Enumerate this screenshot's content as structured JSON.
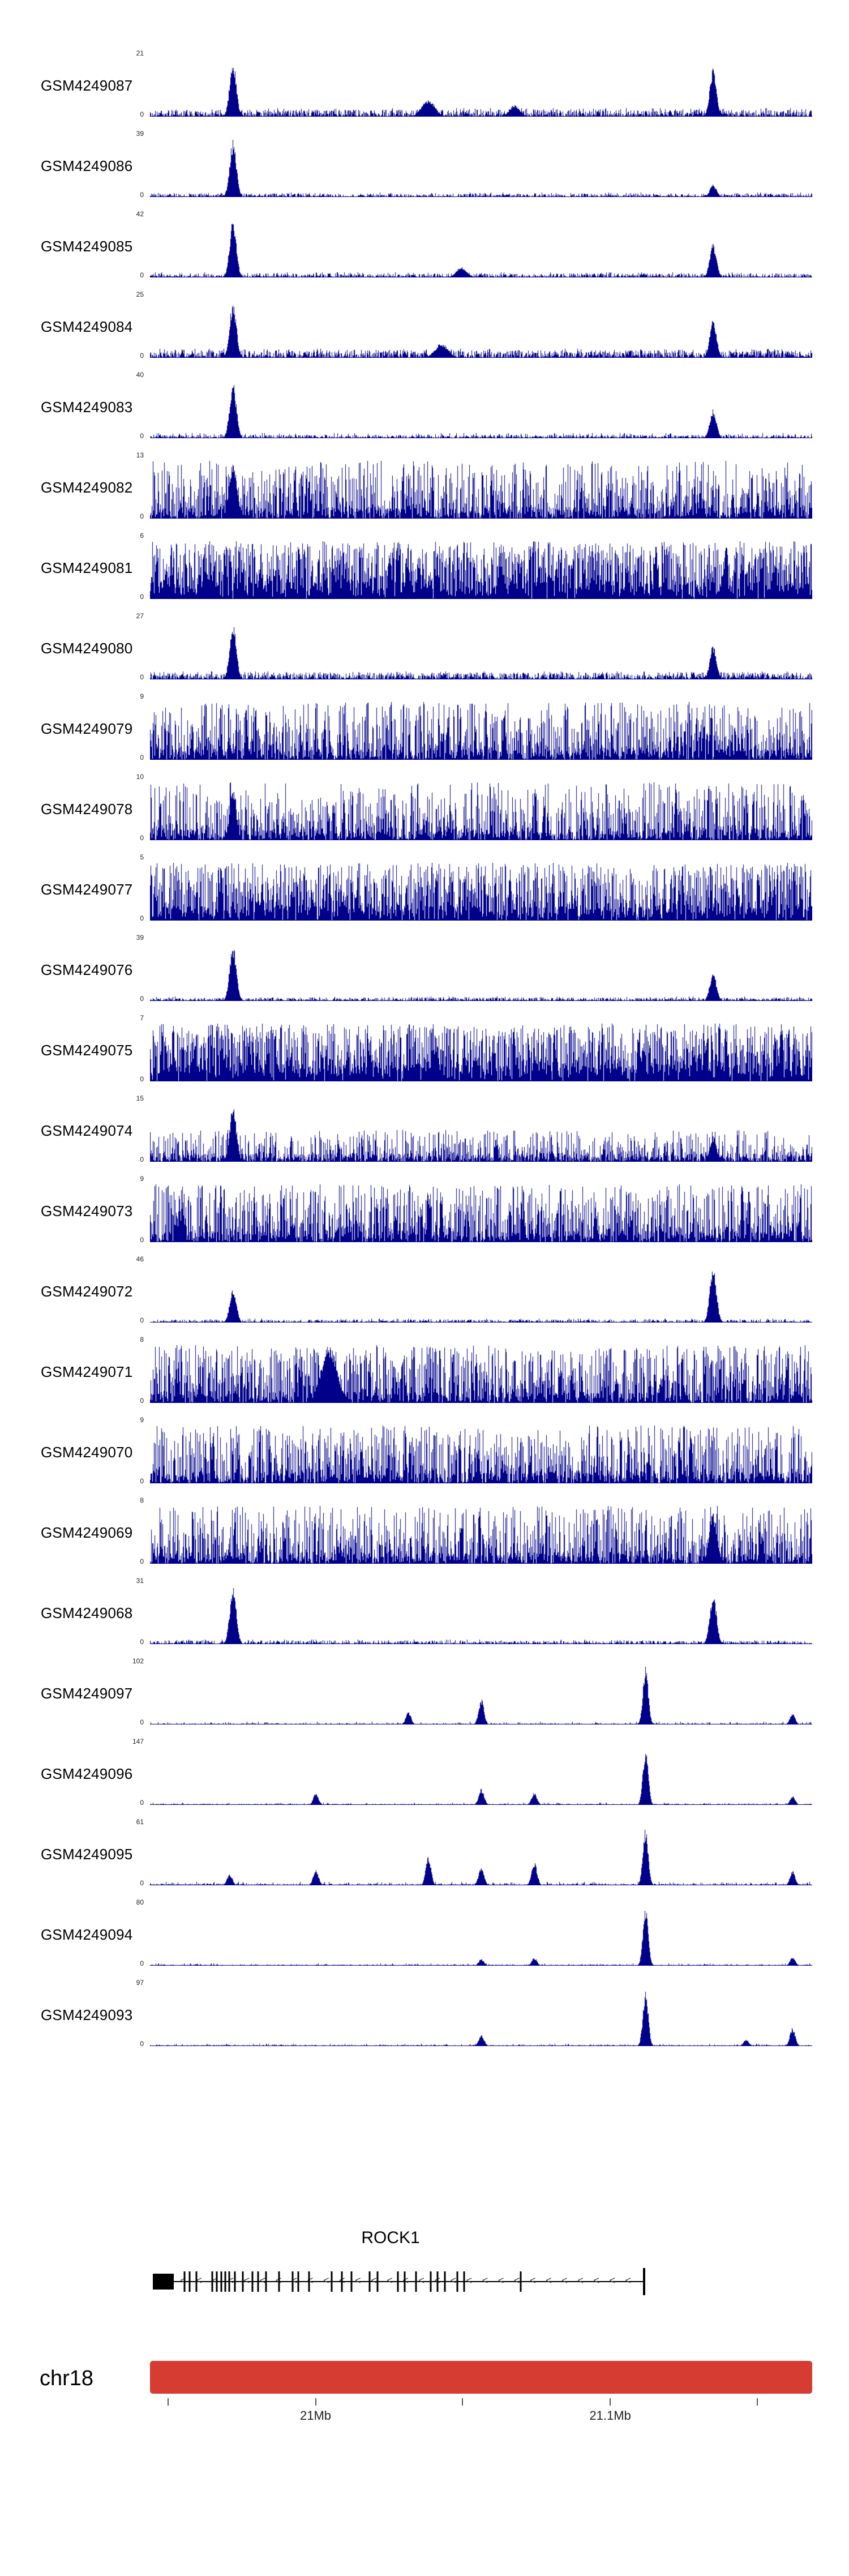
{
  "figure": {
    "signal_color": "#00008B",
    "ideogram_color": "#D63C32",
    "zero_label": "0"
  },
  "gene_track": {
    "gene_name": "ROCK1",
    "strand_arrow": "<",
    "utr_box": {
      "x": 0.004,
      "w": 0.032
    },
    "line_end": 0.746,
    "exons": [
      0.052,
      0.06,
      0.07,
      0.094,
      0.101,
      0.108,
      0.114,
      0.12,
      0.128,
      0.14,
      0.155,
      0.163,
      0.175,
      0.195,
      0.215,
      0.224,
      0.24,
      0.274,
      0.29,
      0.304,
      0.332,
      0.344,
      0.374,
      0.385,
      0.402,
      0.424,
      0.434,
      0.445,
      0.464,
      0.474,
      0.56,
      0.746
    ]
  },
  "ideogram": {
    "chromosome": "chr18"
  },
  "scale": {
    "ticks": [
      {
        "x": 0.027,
        "label": ""
      },
      {
        "x": 0.25,
        "label": "21Mb"
      },
      {
        "x": 0.472,
        "label": ""
      },
      {
        "x": 0.695,
        "label": "21.1Mb"
      },
      {
        "x": 0.917,
        "label": ""
      }
    ]
  },
  "chart_data": {
    "type": "area",
    "description": "Genome browser read-coverage tracks across the ROCK1 locus on chr18; each track is a GSM sample with its own y-axis maximum, signal drawn as dark-blue vertical coverage bars from 0 to ymax.",
    "x_axis": {
      "chromosome": "chr18",
      "tick_labels": [
        "21Mb",
        "21.1Mb"
      ]
    },
    "gene": "ROCK1",
    "tracks": [
      {
        "label": "GSM4249087",
        "ymax": 21,
        "noise": 0.12,
        "density": 0.55,
        "spike": 0.15,
        "pow": 2.2,
        "peaks": [
          {
            "x": 0.125,
            "h": 1,
            "w": 0.005
          },
          {
            "x": 0.42,
            "h": 0.3,
            "w": 0.01
          },
          {
            "x": 0.55,
            "h": 0.2,
            "w": 0.008
          },
          {
            "x": 0.85,
            "h": 0.85,
            "w": 0.005
          }
        ]
      },
      {
        "label": "GSM4249086",
        "ymax": 39,
        "noise": 0.06,
        "density": 0.45,
        "spike": 0.08,
        "pow": 2.5,
        "peaks": [
          {
            "x": 0.125,
            "h": 1,
            "w": 0.005
          },
          {
            "x": 0.85,
            "h": 0.22,
            "w": 0.005
          }
        ]
      },
      {
        "label": "GSM4249085",
        "ymax": 42,
        "noise": 0.07,
        "density": 0.5,
        "spike": 0.09,
        "pow": 2.5,
        "peaks": [
          {
            "x": 0.125,
            "h": 1,
            "w": 0.005
          },
          {
            "x": 0.47,
            "h": 0.18,
            "w": 0.008
          },
          {
            "x": 0.85,
            "h": 0.6,
            "w": 0.005
          }
        ]
      },
      {
        "label": "GSM4249084",
        "ymax": 25,
        "noise": 0.13,
        "density": 0.6,
        "spike": 0.16,
        "pow": 2.2,
        "peaks": [
          {
            "x": 0.125,
            "h": 1,
            "w": 0.005
          },
          {
            "x": 0.44,
            "h": 0.25,
            "w": 0.01
          },
          {
            "x": 0.85,
            "h": 0.7,
            "w": 0.005
          }
        ]
      },
      {
        "label": "GSM4249083",
        "ymax": 40,
        "noise": 0.06,
        "density": 0.45,
        "spike": 0.09,
        "pow": 2.5,
        "peaks": [
          {
            "x": 0.125,
            "h": 1,
            "w": 0.005
          },
          {
            "x": 0.85,
            "h": 0.5,
            "w": 0.005
          }
        ]
      },
      {
        "label": "GSM4249082",
        "ymax": 13,
        "noise": 0.2,
        "density": 0.85,
        "spike": 1,
        "pow": 1.6,
        "peaks": [
          {
            "x": 0.125,
            "h": 0.95,
            "w": 0.006
          }
        ]
      },
      {
        "label": "GSM4249081",
        "ymax": 6,
        "noise": 0.3,
        "density": 0.97,
        "spike": 1,
        "pow": 0.9,
        "peaks": []
      },
      {
        "label": "GSM4249080",
        "ymax": 27,
        "noise": 0.12,
        "density": 0.55,
        "spike": 0.14,
        "pow": 2.2,
        "peaks": [
          {
            "x": 0.125,
            "h": 1,
            "w": 0.005
          },
          {
            "x": 0.85,
            "h": 0.6,
            "w": 0.005
          }
        ]
      },
      {
        "label": "GSM4249079",
        "ymax": 9,
        "noise": 0.2,
        "density": 0.85,
        "spike": 1,
        "pow": 1.5,
        "peaks": []
      },
      {
        "label": "GSM4249078",
        "ymax": 10,
        "noise": 0.2,
        "density": 0.8,
        "spike": 1,
        "pow": 1.6,
        "peaks": [
          {
            "x": 0.125,
            "h": 0.9,
            "w": 0.005
          }
        ]
      },
      {
        "label": "GSM4249077",
        "ymax": 5,
        "noise": 0.25,
        "density": 0.9,
        "spike": 1,
        "pow": 1.1,
        "peaks": []
      },
      {
        "label": "GSM4249076",
        "ymax": 39,
        "noise": 0.06,
        "density": 0.45,
        "spike": 0.08,
        "pow": 2.5,
        "peaks": [
          {
            "x": 0.125,
            "h": 1,
            "w": 0.005
          },
          {
            "x": 0.85,
            "h": 0.5,
            "w": 0.005
          }
        ]
      },
      {
        "label": "GSM4249075",
        "ymax": 7,
        "noise": 0.3,
        "density": 0.96,
        "spike": 1,
        "pow": 0.95,
        "peaks": []
      },
      {
        "label": "GSM4249074",
        "ymax": 15,
        "noise": 0.15,
        "density": 0.75,
        "spike": 0.55,
        "pow": 1.8,
        "peaks": [
          {
            "x": 0.125,
            "h": 1,
            "w": 0.005
          },
          {
            "x": 0.85,
            "h": 0.45,
            "w": 0.005
          }
        ]
      },
      {
        "label": "GSM4249073",
        "ymax": 9,
        "noise": 0.2,
        "density": 0.85,
        "spike": 1,
        "pow": 1.5,
        "peaks": []
      },
      {
        "label": "GSM4249072",
        "ymax": 46,
        "noise": 0.05,
        "density": 0.4,
        "spike": 0.07,
        "pow": 2.5,
        "peaks": [
          {
            "x": 0.125,
            "h": 0.6,
            "w": 0.005
          },
          {
            "x": 0.85,
            "h": 1,
            "w": 0.005
          }
        ]
      },
      {
        "label": "GSM4249071",
        "ymax": 8,
        "noise": 0.2,
        "density": 0.85,
        "spike": 1,
        "pow": 1.4,
        "peaks": [
          {
            "x": 0.27,
            "h": 1,
            "w": 0.012
          }
        ]
      },
      {
        "label": "GSM4249070",
        "ymax": 9,
        "noise": 0.2,
        "density": 0.85,
        "spike": 1,
        "pow": 1.5,
        "peaks": []
      },
      {
        "label": "GSM4249069",
        "ymax": 8,
        "noise": 0.2,
        "density": 0.82,
        "spike": 1,
        "pow": 1.5,
        "peaks": [
          {
            "x": 0.85,
            "h": 0.9,
            "w": 0.006
          }
        ]
      },
      {
        "label": "GSM4249068",
        "ymax": 31,
        "noise": 0.06,
        "density": 0.45,
        "spike": 0.08,
        "pow": 2.5,
        "peaks": [
          {
            "x": 0.125,
            "h": 1,
            "w": 0.005
          },
          {
            "x": 0.85,
            "h": 0.9,
            "w": 0.005
          }
        ]
      },
      {
        "label": "GSM4249097",
        "ymax": 102,
        "noise": 0.02,
        "density": 0.35,
        "spike": 0.05,
        "pow": 2.5,
        "peaks": [
          {
            "x": 0.39,
            "h": 0.22,
            "w": 0.004
          },
          {
            "x": 0.5,
            "h": 0.45,
            "w": 0.004
          },
          {
            "x": 0.748,
            "h": 1,
            "w": 0.004
          },
          {
            "x": 0.97,
            "h": 0.2,
            "w": 0.004
          }
        ]
      },
      {
        "label": "GSM4249096",
        "ymax": 147,
        "noise": 0.02,
        "density": 0.35,
        "spike": 0.04,
        "pow": 2.5,
        "peaks": [
          {
            "x": 0.25,
            "h": 0.2,
            "w": 0.004
          },
          {
            "x": 0.5,
            "h": 0.28,
            "w": 0.004
          },
          {
            "x": 0.58,
            "h": 0.22,
            "w": 0.004
          },
          {
            "x": 0.748,
            "h": 1,
            "w": 0.004
          },
          {
            "x": 0.97,
            "h": 0.15,
            "w": 0.004
          }
        ]
      },
      {
        "label": "GSM4249095",
        "ymax": 61,
        "noise": 0.03,
        "density": 0.4,
        "spike": 0.06,
        "pow": 2.5,
        "peaks": [
          {
            "x": 0.12,
            "h": 0.2,
            "w": 0.004
          },
          {
            "x": 0.25,
            "h": 0.28,
            "w": 0.004
          },
          {
            "x": 0.42,
            "h": 0.5,
            "w": 0.004
          },
          {
            "x": 0.5,
            "h": 0.33,
            "w": 0.004
          },
          {
            "x": 0.58,
            "h": 0.42,
            "w": 0.004
          },
          {
            "x": 0.748,
            "h": 1,
            "w": 0.004
          },
          {
            "x": 0.97,
            "h": 0.25,
            "w": 0.004
          }
        ]
      },
      {
        "label": "GSM4249094",
        "ymax": 80,
        "noise": 0.02,
        "density": 0.35,
        "spike": 0.04,
        "pow": 2.5,
        "peaks": [
          {
            "x": 0.5,
            "h": 0.12,
            "w": 0.004
          },
          {
            "x": 0.58,
            "h": 0.14,
            "w": 0.004
          },
          {
            "x": 0.748,
            "h": 1,
            "w": 0.004
          },
          {
            "x": 0.97,
            "h": 0.15,
            "w": 0.004
          }
        ]
      },
      {
        "label": "GSM4249093",
        "ymax": 97,
        "noise": 0.02,
        "density": 0.35,
        "spike": 0.04,
        "pow": 2.5,
        "peaks": [
          {
            "x": 0.5,
            "h": 0.2,
            "w": 0.004
          },
          {
            "x": 0.748,
            "h": 1,
            "w": 0.004
          },
          {
            "x": 0.9,
            "h": 0.12,
            "w": 0.004
          },
          {
            "x": 0.97,
            "h": 0.32,
            "w": 0.004
          }
        ]
      }
    ]
  }
}
